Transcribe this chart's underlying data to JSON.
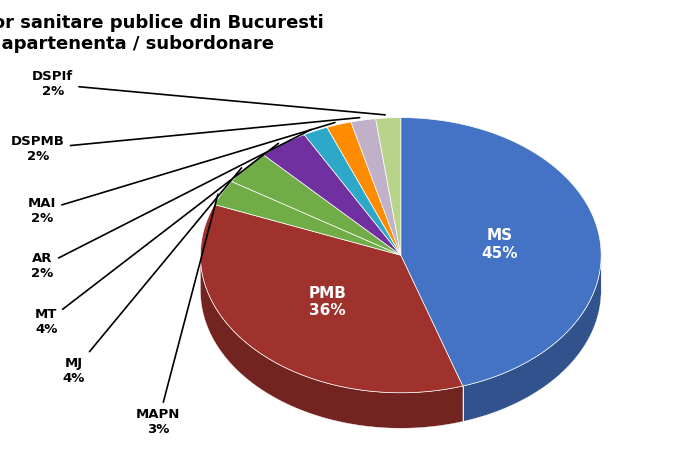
{
  "title": "Ponderea  unitatilor sanitare publice din Bucuresti\ndupa tipul de apartenenta / subordonare",
  "labels": [
    "MS",
    "PMB",
    "MAPN",
    "MJ",
    "MT",
    "AR",
    "MAI",
    "DSPMB",
    "DSPIf"
  ],
  "values": [
    45,
    36,
    3,
    4,
    4,
    2,
    2,
    2,
    2
  ],
  "pct_labels": [
    "45%",
    "36%",
    "3%",
    "4%",
    "4%",
    "2%",
    "2%",
    "2%",
    "2%"
  ],
  "wedge_colors": [
    "#4472C4",
    "#A0322D",
    "#70AD47",
    "#70AD47",
    "#7030A0",
    "#2EA8C8",
    "#FF8C00",
    "#C0B0C8",
    "#B8D48A"
  ],
  "title_fontsize": 13,
  "background_color": "#FFFFFF",
  "startangle": 90
}
